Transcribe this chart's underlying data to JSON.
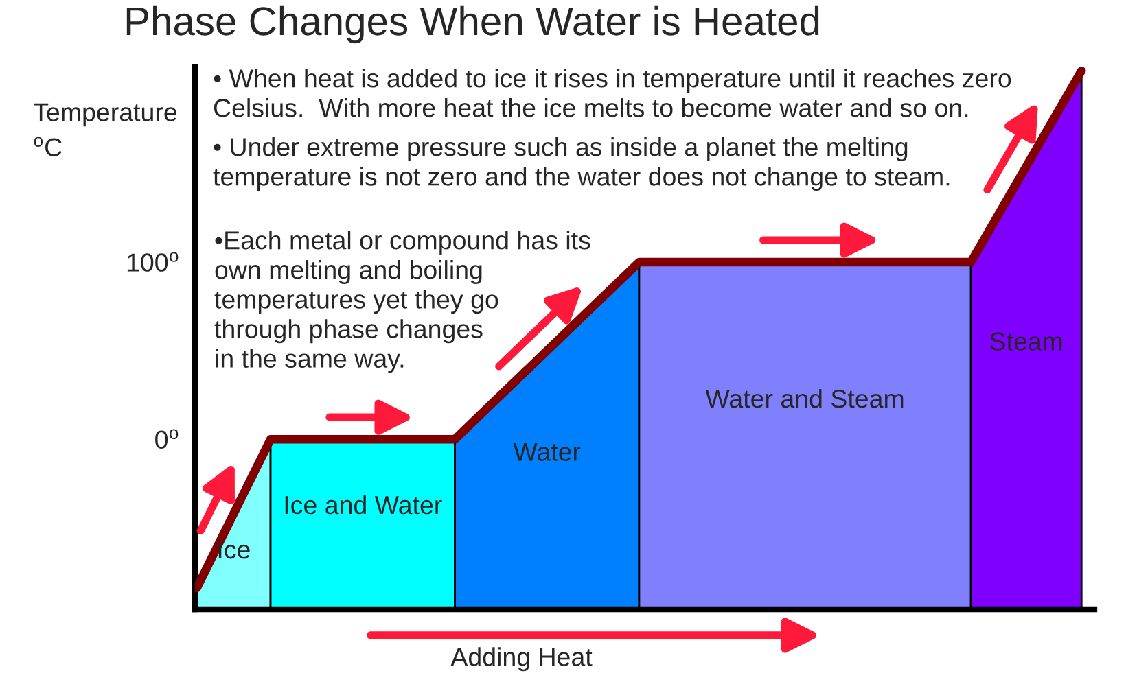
{
  "chart_data": {
    "type": "line",
    "title": "Phase Changes When Water is Heated",
    "xlabel": "Adding Heat",
    "ylabel": "Temperature\n$^{o}$C",
    "annotations": [
      "• When heat is added to ice it rises in temperature until it reaches zero\nCelsius.  With more heat the ice melts to become water and so on.",
      "• Under extreme pressure such as inside a planet the melting\ntemperature is not zero and the water does not change to steam.",
      "•Each metal or compound has its\nown melting and boiling\ntemperatures yet they go\nthrough phase changes\nin the same way.",
      "Ice",
      "Ice and Water",
      "Water",
      "Water and Steam",
      "Steam"
    ],
    "categories": [
      null,
      null,
      null,
      null,
      null,
      null,
      null,
      null,
      null,
      null,
      null,
      null,
      null,
      null,
      null,
      null,
      null,
      null,
      null,
      null,
      null,
      null,
      null,
      null,
      null
    ],
    "series": [
      {
        "color": "#800000",
        "values": [
          -84,
          -42,
          0,
          0,
          0,
          0,
          0,
          0,
          20,
          40,
          60,
          80,
          100,
          100,
          100,
          100,
          100,
          100,
          100,
          100,
          100,
          100,
          136,
          172,
          208
        ]
      }
    ],
    "ylim": [
      -96,
      210
    ],
    "yticks": [
      {
        "value": 0,
        "label": "0$^{o}$"
      },
      {
        "value": 100,
        "label": "100$^{o}$"
      }
    ],
    "tick_labels": "y"
  }
}
